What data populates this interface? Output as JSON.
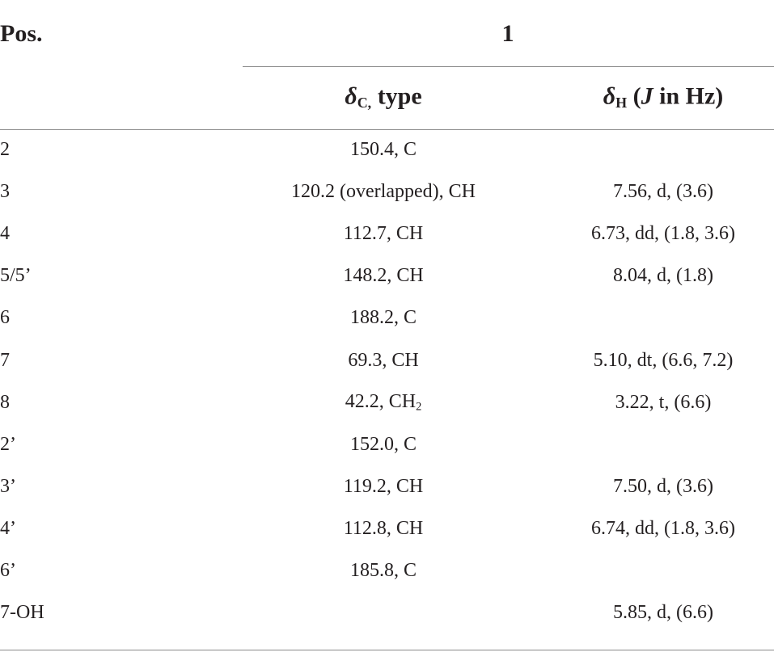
{
  "header": {
    "position": "Pos.",
    "compound": "1",
    "sub_columns": [
      {
        "symbol": "δ",
        "subscript": "C,",
        "text": " type"
      },
      {
        "symbol": "δ",
        "subscript": "H",
        "open": " (",
        "italic": "J",
        "text": " in Hz)"
      }
    ]
  },
  "table": {
    "rows": [
      [
        "2",
        {
          "text": "150.4, C"
        },
        null
      ],
      [
        "3",
        {
          "text": "120.2 (overlapped), CH"
        },
        "7.56, d, (3.6)"
      ],
      [
        "4",
        {
          "text": "112.7, CH"
        },
        "6.73, dd, (1.8, 3.6)"
      ],
      [
        "5/5’",
        {
          "text": "148.2, CH"
        },
        "8.04, d, (1.8)"
      ],
      [
        "6",
        {
          "text": "188.2, C"
        },
        null
      ],
      [
        "7",
        {
          "text": "69.3, CH"
        },
        "5.10, dt, (6.6, 7.2)"
      ],
      [
        "8",
        {
          "text": "42.2, CH",
          "subscript": "2"
        },
        "3.22, t, (6.6)"
      ],
      [
        "2’",
        {
          "text": "152.0, C"
        },
        null
      ],
      [
        "3’",
        {
          "text": "119.2, CH"
        },
        "7.50, d, (3.6)"
      ],
      [
        "4’",
        {
          "text": "112.8, CH"
        },
        "6.74, dd, (1.8, 3.6)"
      ],
      [
        "6’",
        {
          "text": "185.8, C"
        },
        null
      ],
      [
        "7-OH",
        null,
        "5.85, d, (6.6)"
      ]
    ]
  }
}
